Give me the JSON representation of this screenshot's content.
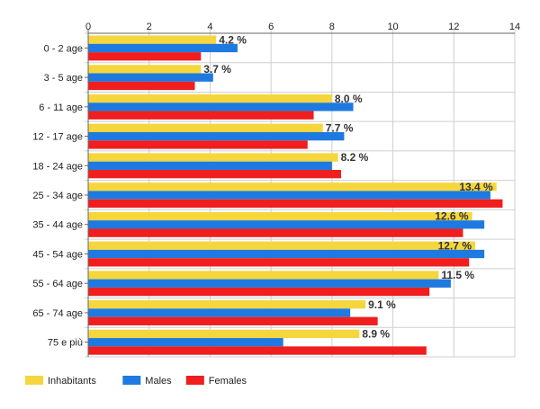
{
  "chart_data": {
    "type": "bar",
    "orientation": "horizontal",
    "categories": [
      "0 - 2 age",
      "3 - 5 age",
      "6 - 11 age",
      "12 - 17 age",
      "18 - 24 age",
      "25 - 34 age",
      "35 - 44 age",
      "45 - 54 age",
      "55 - 64 age",
      "65 - 74 age",
      "75 e più"
    ],
    "series": [
      {
        "name": "Inhabitants",
        "color": "#f5d63d",
        "values": [
          4.2,
          3.7,
          8.0,
          7.7,
          8.2,
          13.4,
          12.6,
          12.7,
          11.5,
          9.1,
          8.9
        ]
      },
      {
        "name": "Males",
        "color": "#1e7ae0",
        "values": [
          4.9,
          4.1,
          8.7,
          8.4,
          8.0,
          13.2,
          13.0,
          13.0,
          11.9,
          8.6,
          6.4
        ]
      },
      {
        "name": "Females",
        "color": "#f01e1e",
        "values": [
          3.7,
          3.5,
          7.4,
          7.2,
          8.3,
          13.6,
          12.3,
          12.5,
          11.2,
          9.5,
          11.1
        ]
      }
    ],
    "data_labels": [
      "4.2 %",
      "3.7 %",
      "8.0 %",
      "7.7 %",
      "8.2 %",
      "13.4 %",
      "12.6 %",
      "12.7 %",
      "11.5 %",
      "9.1 %",
      "8.9 %"
    ],
    "xlim": [
      0,
      14
    ],
    "x_ticks": [
      0,
      2,
      4,
      6,
      8,
      10,
      12,
      14
    ],
    "x_axis_position": "top",
    "grid": true,
    "legend_position": "bottom-left",
    "title": "",
    "xlabel": "",
    "ylabel": ""
  }
}
